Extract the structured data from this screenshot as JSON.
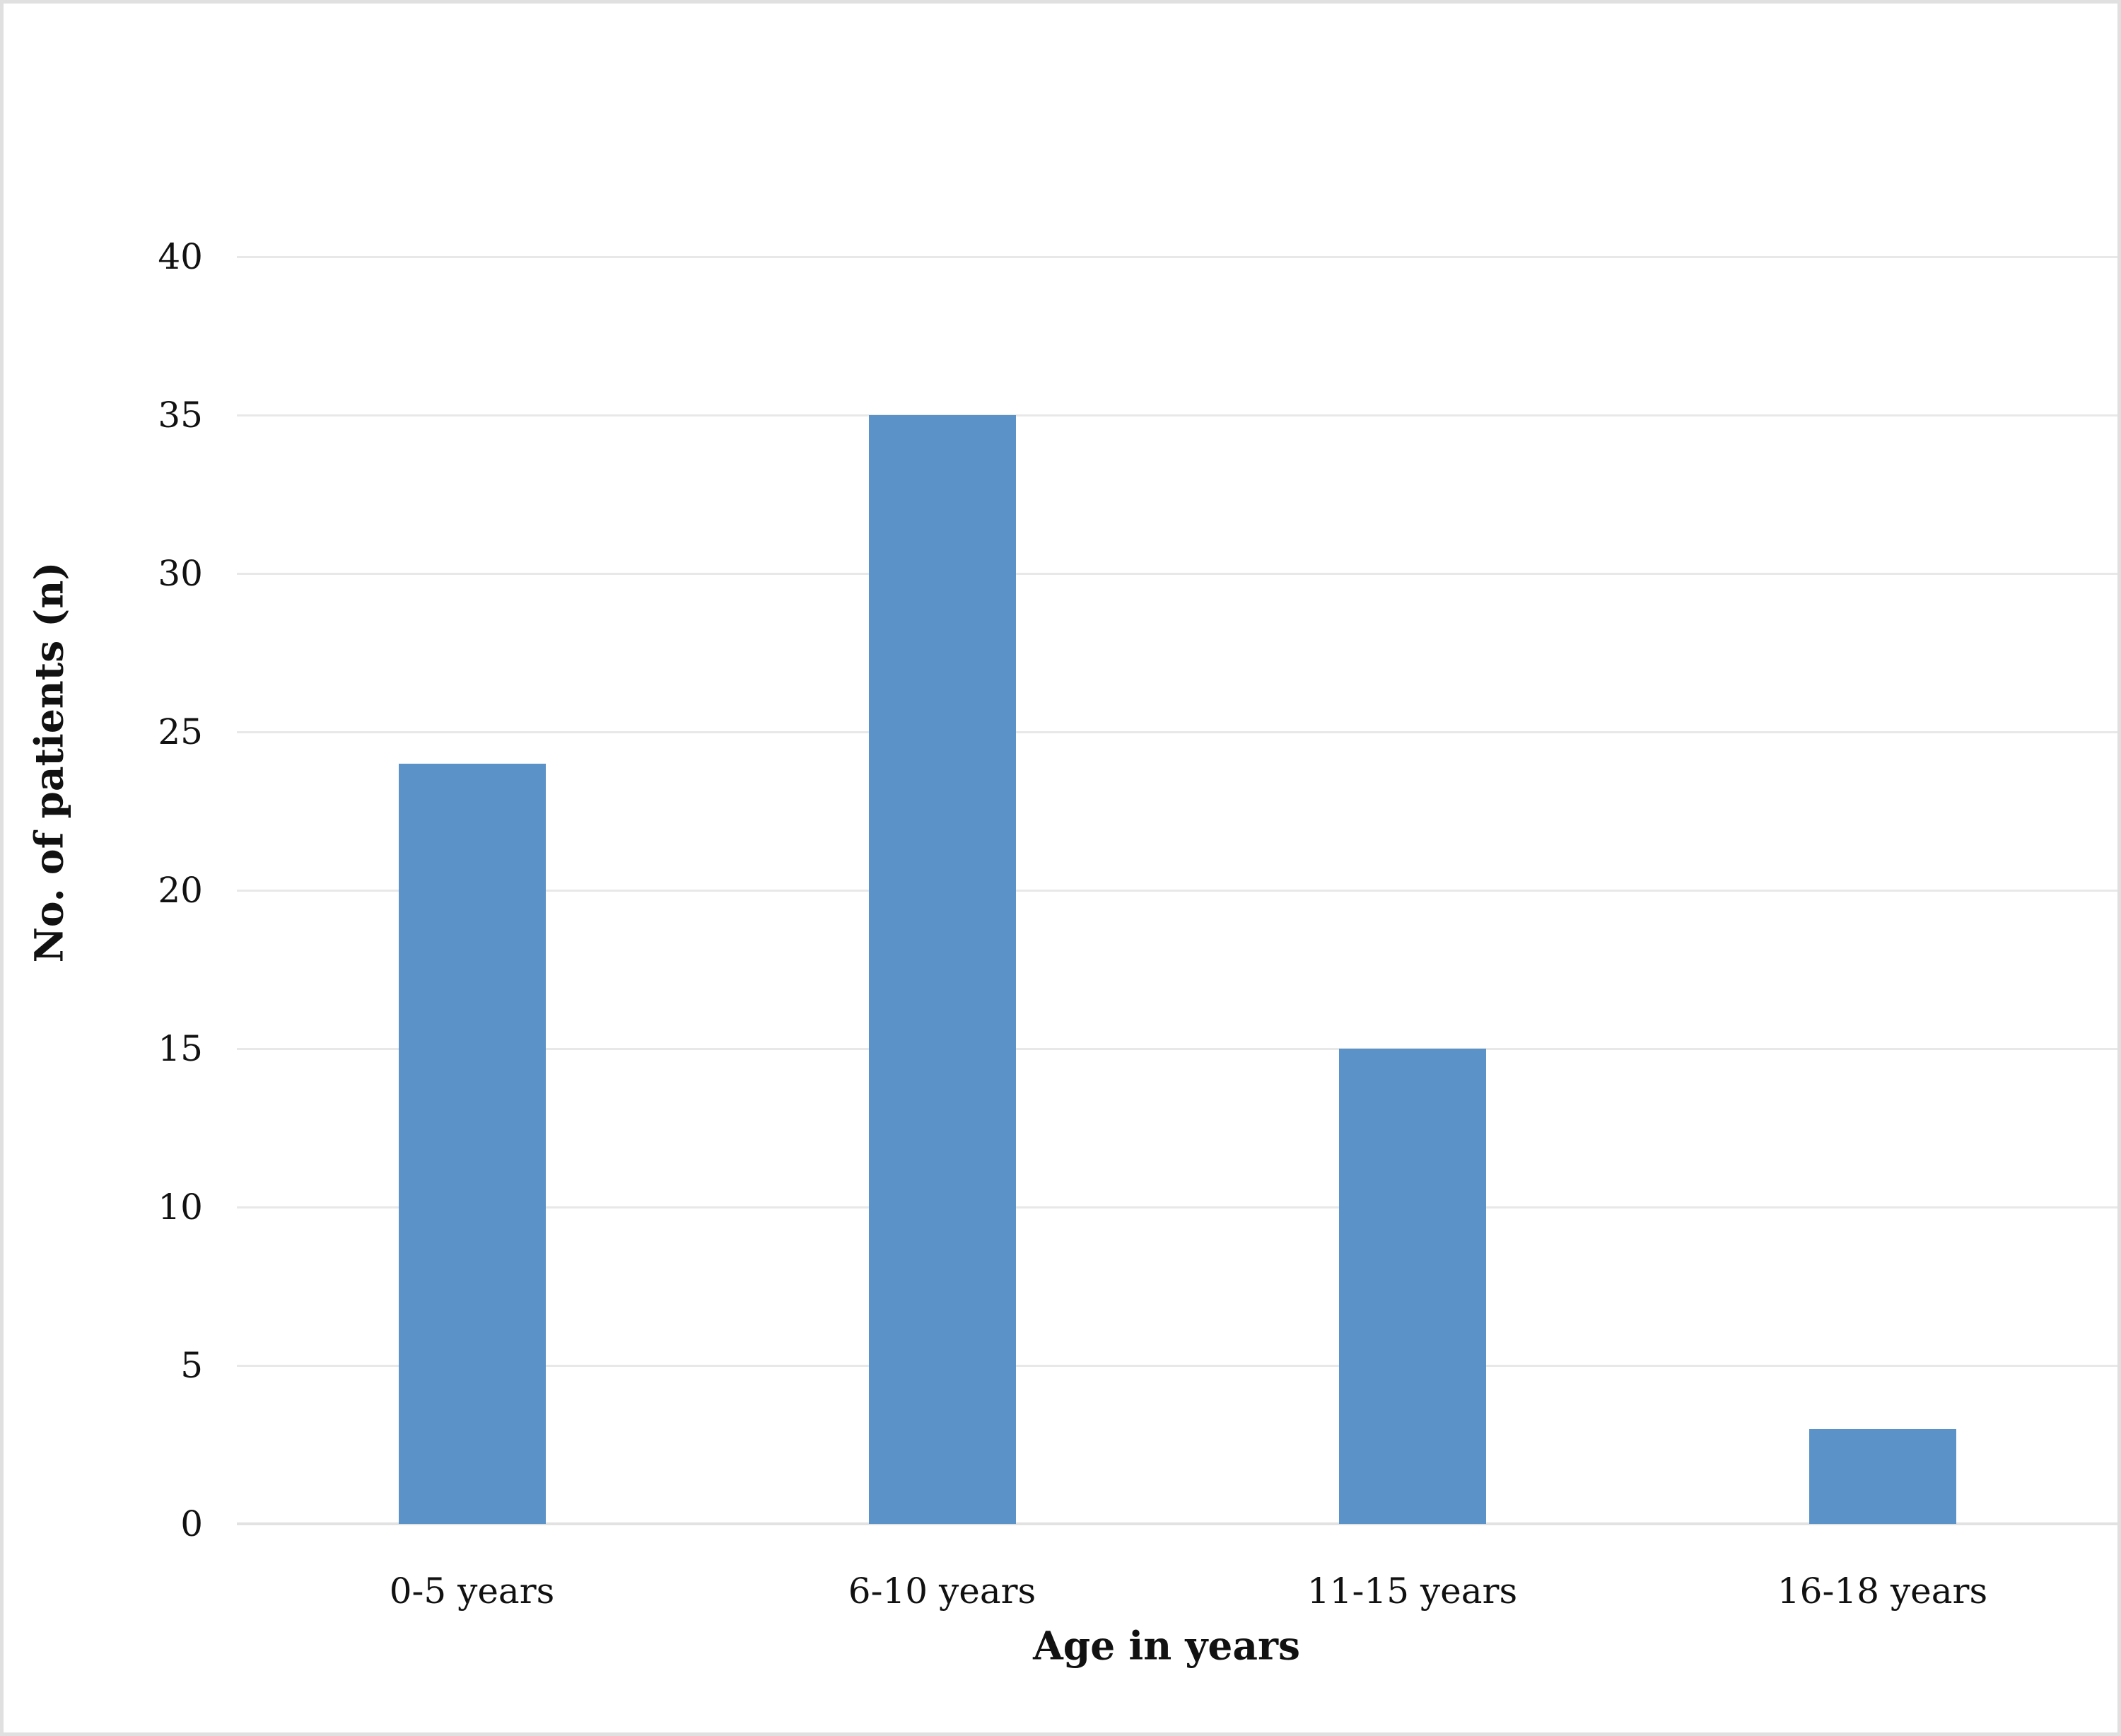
{
  "figure": {
    "background": "#ffffff",
    "border_color": "#e0e0e0"
  },
  "chart_data": {
    "type": "bar",
    "categories": [
      "0-5 years",
      "6-10 years",
      "11-15 years",
      "16-18 years"
    ],
    "values": [
      24,
      35,
      15,
      3
    ],
    "title": "",
    "xlabel": "Age in years",
    "ylabel": "No. of patients (n)",
    "ylim": [
      0,
      40
    ],
    "ytick_step": 5,
    "yticks": [
      0,
      5,
      10,
      15,
      20,
      25,
      30,
      35,
      40
    ],
    "grid": true,
    "legend": "none",
    "bar_color": "#5b92c8",
    "gridline_color": "#e8e8e8",
    "axis_line_color": "#e2e2e2",
    "text_color": "#111111"
  }
}
